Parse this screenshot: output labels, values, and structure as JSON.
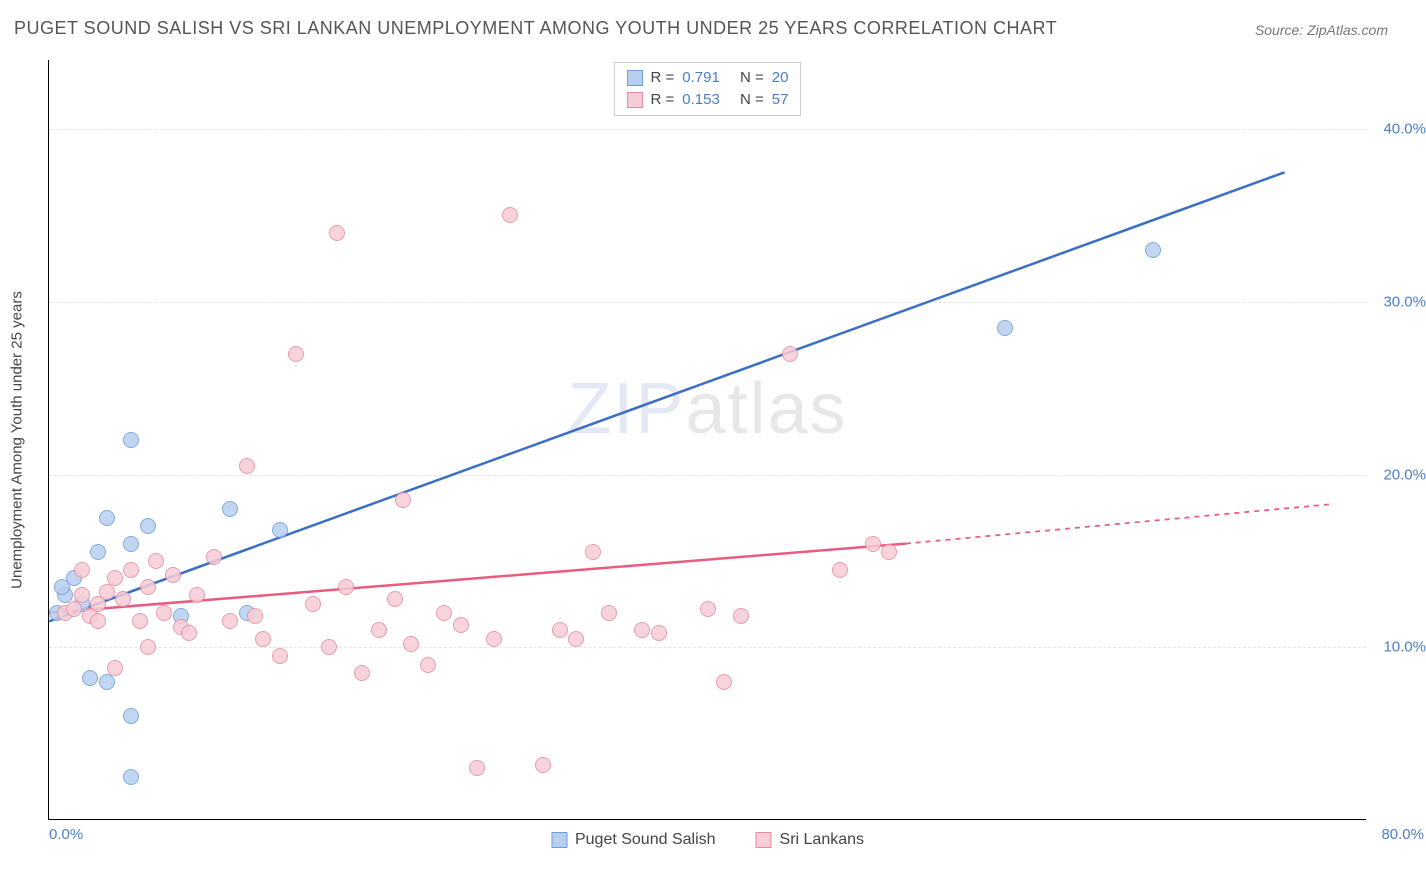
{
  "title": "PUGET SOUND SALISH VS SRI LANKAN UNEMPLOYMENT AMONG YOUTH UNDER 25 YEARS CORRELATION CHART",
  "source_label": "Source: ZipAtlas.com",
  "ylabel": "Unemployment Among Youth under 25 years",
  "watermark_a": "ZIP",
  "watermark_b": "atlas",
  "chart": {
    "type": "scatter",
    "xlim": [
      0,
      80
    ],
    "ylim": [
      0,
      44
    ],
    "ytick_values": [
      10,
      20,
      30,
      40
    ],
    "ytick_labels": [
      "10.0%",
      "20.0%",
      "30.0%",
      "40.0%"
    ],
    "xtick_min_label": "0.0%",
    "xtick_max_label": "80.0%",
    "background_color": "#ffffff",
    "grid_color": "#e5e5e5",
    "marker_radius": 8,
    "series": [
      {
        "id": "salish",
        "label": "Puget Sound Salish",
        "fill_color": "#b6cfef",
        "stroke_color": "#6f9cd6",
        "line_color": "#3b6fc7",
        "line_width": 2.5,
        "R": "0.791",
        "N": "20",
        "trend": {
          "x1": 0,
          "y1": 11.5,
          "x2": 75,
          "y2": 37.5,
          "extent_x": 75
        },
        "points": [
          [
            0.5,
            12
          ],
          [
            1,
            13
          ],
          [
            1.5,
            14
          ],
          [
            2,
            12.5
          ],
          [
            3,
            15.5
          ],
          [
            5,
            22
          ],
          [
            3.5,
            17.5
          ],
          [
            6,
            17
          ],
          [
            8,
            11.8
          ],
          [
            11,
            18
          ],
          [
            12,
            12
          ],
          [
            14,
            16.8
          ],
          [
            5,
            6
          ],
          [
            2.5,
            8.2
          ],
          [
            3.5,
            8
          ],
          [
            5,
            2.5
          ],
          [
            58,
            28.5
          ],
          [
            67,
            33
          ],
          [
            5,
            16
          ],
          [
            0.8,
            13.5
          ]
        ]
      },
      {
        "id": "srilankan",
        "label": "Sri Lankans",
        "fill_color": "#f6cdd6",
        "stroke_color": "#e78aa1",
        "line_color": "#e95c7f",
        "line_width": 2.5,
        "R": "0.153",
        "N": "57",
        "trend": {
          "x1": 0,
          "y1": 12,
          "x2": 52,
          "y2": 16,
          "extent_x": 78,
          "extent_y": 18.3
        },
        "points": [
          [
            1,
            12
          ],
          [
            1.5,
            12.2
          ],
          [
            2,
            13
          ],
          [
            2.5,
            11.8
          ],
          [
            3,
            12.5
          ],
          [
            3.5,
            13.2
          ],
          [
            4,
            14
          ],
          [
            4.5,
            12.8
          ],
          [
            5,
            14.5
          ],
          [
            5.5,
            11.5
          ],
          [
            6,
            13.5
          ],
          [
            6.5,
            15
          ],
          [
            7,
            12
          ],
          [
            7.5,
            14.2
          ],
          [
            8,
            11.2
          ],
          [
            9,
            13
          ],
          [
            10,
            15.2
          ],
          [
            11,
            11.5
          ],
          [
            12,
            20.5
          ],
          [
            13,
            10.5
          ],
          [
            14,
            9.5
          ],
          [
            15,
            27
          ],
          [
            16,
            12.5
          ],
          [
            17,
            10
          ],
          [
            17.5,
            34
          ],
          [
            18,
            13.5
          ],
          [
            19,
            8.5
          ],
          [
            20,
            11
          ],
          [
            21,
            12.8
          ],
          [
            21.5,
            18.5
          ],
          [
            22,
            10.2
          ],
          [
            23,
            9
          ],
          [
            24,
            12
          ],
          [
            25,
            11.3
          ],
          [
            26,
            3
          ],
          [
            27,
            10.5
          ],
          [
            28,
            35
          ],
          [
            30,
            3.2
          ],
          [
            31,
            11
          ],
          [
            32,
            10.5
          ],
          [
            33,
            15.5
          ],
          [
            34,
            12
          ],
          [
            36,
            11
          ],
          [
            37,
            10.8
          ],
          [
            40,
            12.2
          ],
          [
            41,
            8
          ],
          [
            42,
            11.8
          ],
          [
            45,
            27
          ],
          [
            48,
            14.5
          ],
          [
            50,
            16
          ],
          [
            51,
            15.5
          ],
          [
            4,
            8.8
          ],
          [
            6,
            10
          ],
          [
            8.5,
            10.8
          ],
          [
            12.5,
            11.8
          ],
          [
            2,
            14.5
          ],
          [
            3,
            11.5
          ]
        ]
      }
    ]
  },
  "stats_labels": {
    "R": "R =",
    "N": "N ="
  }
}
